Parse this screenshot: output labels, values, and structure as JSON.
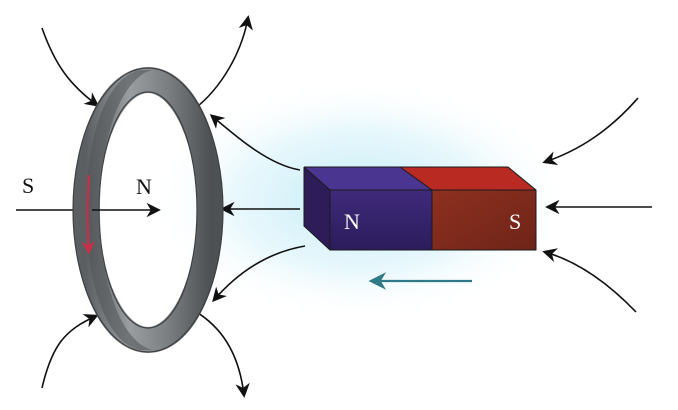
{
  "ring": {
    "left_pole": "S",
    "right_pole": "N"
  },
  "magnet": {
    "north_label": "N",
    "south_label": "S"
  },
  "colors": {
    "magnet_north_front": "#3a2570",
    "magnet_north_top": "#4a3590",
    "magnet_north_side": "#2d1c58",
    "magnet_south_front": "#8a2e1e",
    "magnet_south_top": "#b82a22",
    "current_arrow": "#c8304a",
    "motion_arrow": "#2f7a86",
    "field_glow": "#c9eef7",
    "ring_metal": "#7c7f82"
  }
}
